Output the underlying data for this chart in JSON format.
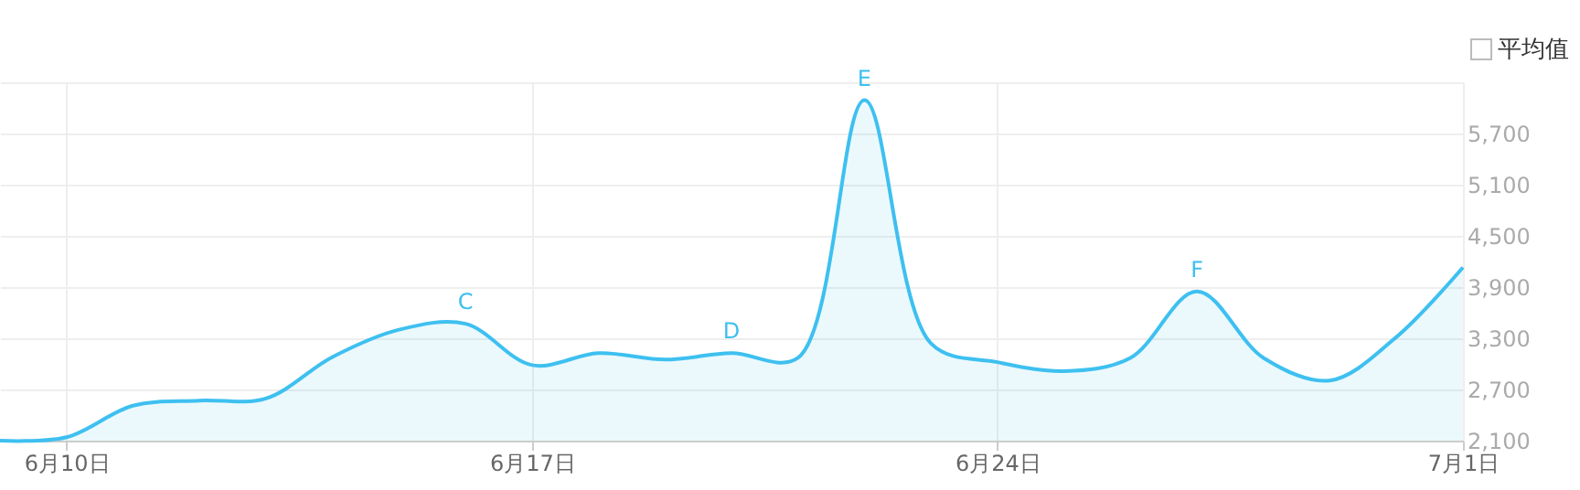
{
  "chart_data": {
    "type": "area",
    "x": [
      "--06-09",
      "--06-10",
      "--06-11",
      "--06-12",
      "--06-13",
      "--06-14",
      "--06-15",
      "--06-16",
      "--06-17",
      "--06-18",
      "--06-19",
      "--06-20",
      "--06-21",
      "--06-22",
      "--06-23",
      "--06-24",
      "--06-25",
      "--06-26",
      "--06-27",
      "--06-28",
      "--06-29",
      "--06-30",
      "--07-01"
    ],
    "series": [
      {
        "color": "#3ec0f0",
        "values": [
          2100,
          2140,
          2510,
          2570,
          2595,
          3080,
          3400,
          3470,
          2985,
          3125,
          3050,
          3125,
          3070,
          6090,
          3240,
          3020,
          2915,
          3070,
          3850,
          3070,
          2805,
          3315,
          4130
        ]
      }
    ],
    "xlim": [
      "--06-09",
      "--07-01"
    ],
    "xticks": [
      {
        "value": "--06-10",
        "label": "6月10日"
      },
      {
        "value": "--06-17",
        "label": "6月17日"
      },
      {
        "value": "--06-24",
        "label": "6月24日"
      },
      {
        "value": "--07-01",
        "label": "7月1日"
      }
    ],
    "ylim": [
      2100,
      6300
    ],
    "yticks": [
      {
        "value": 2100,
        "label": "2,100"
      },
      {
        "value": 2700,
        "label": "2,700"
      },
      {
        "value": 3300,
        "label": "3,300"
      },
      {
        "value": 3900,
        "label": "3,900"
      },
      {
        "value": 4500,
        "label": "4,500"
      },
      {
        "value": 5100,
        "label": "5,100"
      },
      {
        "value": 5700,
        "label": "5,700"
      },
      {
        "value": 6300,
        "label": null
      }
    ],
    "grid": true,
    "annotations": [
      {
        "text": "C",
        "x": "--06-16",
        "y": 3470
      },
      {
        "text": "D",
        "x": "--06-20",
        "y": 3125
      },
      {
        "text": "E",
        "x": "--06-22",
        "y": 6090
      },
      {
        "text": "F",
        "x": "--06-27",
        "y": 3850
      },
      "平均值"
    ]
  }
}
